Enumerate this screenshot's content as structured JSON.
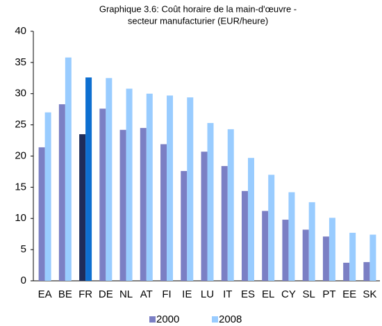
{
  "chart_data": {
    "type": "bar",
    "title": [
      "Graphique 3.6: Coût horaire de la main-d'œuvre  -",
      "secteur manufacturier (EUR/heure)"
    ],
    "categories": [
      "EA",
      "BE",
      "FR",
      "DE",
      "NL",
      "AT",
      "FI",
      "IE",
      "LU",
      "IT",
      "ES",
      "EL",
      "CY",
      "SL",
      "PT",
      "EE",
      "SK"
    ],
    "highlight": "FR",
    "series": [
      {
        "name": "2000",
        "color": "#7b7fc4",
        "highlight_color": "#1f2d5a",
        "values": [
          21.4,
          28.3,
          23.5,
          27.6,
          24.2,
          24.5,
          21.9,
          17.6,
          20.7,
          18.4,
          14.4,
          11.2,
          9.8,
          8.2,
          7.1,
          2.9,
          3.0
        ]
      },
      {
        "name": "2008",
        "color": "#99ccff",
        "highlight_color": "#0e6fd0",
        "values": [
          27.0,
          35.8,
          32.6,
          32.5,
          30.8,
          30.0,
          29.7,
          29.4,
          25.3,
          24.3,
          19.7,
          17.0,
          14.2,
          12.6,
          10.1,
          7.7,
          7.4
        ]
      }
    ],
    "ylim": [
      0,
      40
    ],
    "yticks": [
      0,
      5,
      10,
      15,
      20,
      25,
      30,
      35,
      40
    ],
    "grid": false,
    "legend": "bottom"
  }
}
